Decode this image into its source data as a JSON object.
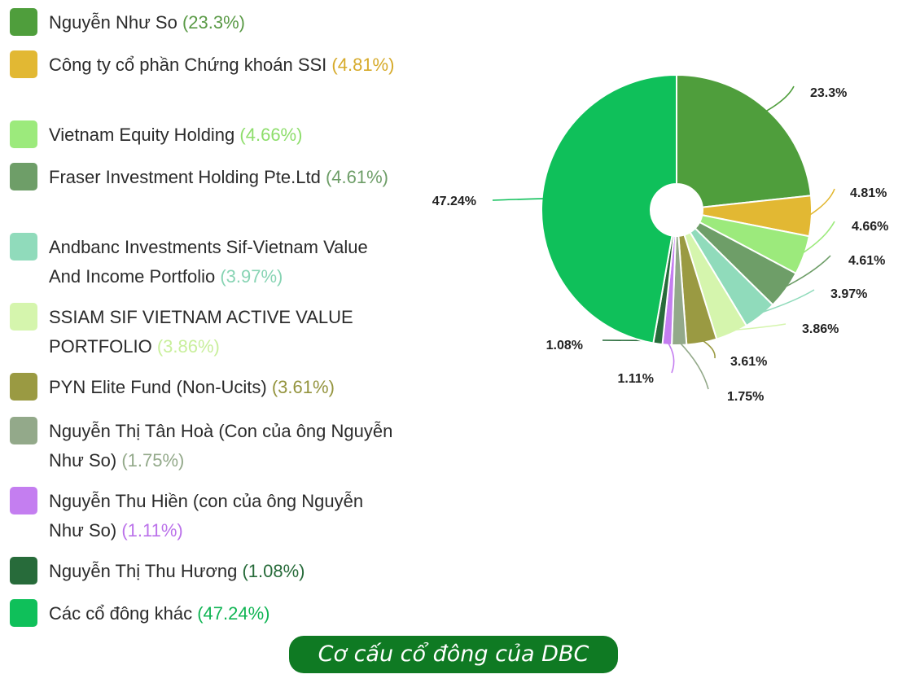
{
  "chart_data": {
    "type": "pie",
    "variant": "donut",
    "title": "Cơ cấu cổ đông của DBC",
    "legend_position": "left",
    "slices": [
      {
        "label": "Nguyễn Như So",
        "value": 23.3,
        "value_label": "23.3%",
        "legend_pct": "(23.3%)",
        "color": "#4f9e3c",
        "text_color": "#5a9a46"
      },
      {
        "label": "Công ty cổ phần Chứng khoán SSI",
        "value": 4.81,
        "value_label": "4.81%",
        "legend_pct": "(4.81%)",
        "color": "#e2b833",
        "text_color": "#d6aa2a"
      },
      {
        "label": "Vietnam Equity Holding",
        "value": 4.66,
        "value_label": "4.66%",
        "legend_pct": "(4.66%)",
        "color": "#9cea7c",
        "text_color": "#8ede6c"
      },
      {
        "label": "Fraser Investment Holding Pte.Ltd",
        "value": 4.61,
        "value_label": "4.61%",
        "legend_pct": "(4.61%)",
        "color": "#6e9e68",
        "text_color": "#6e9e68"
      },
      {
        "label": "Andbanc Investments Sif-Vietnam Value And Income Portfolio",
        "value": 3.97,
        "value_label": "3.97%",
        "legend_pct": "(3.97%)",
        "color": "#90dbbb",
        "text_color": "#88d4b4"
      },
      {
        "label": "SSIAM SIF VIETNAM ACTIVE VALUE PORTFOLIO",
        "value": 3.86,
        "value_label": "3.86%",
        "legend_pct": "(3.86%)",
        "color": "#d5f5ad",
        "text_color": "#c9ef9c"
      },
      {
        "label": "PYN Elite Fund (Non-Ucits)",
        "value": 3.61,
        "value_label": "3.61%",
        "legend_pct": "(3.61%)",
        "color": "#9a9a42",
        "text_color": "#94943e"
      },
      {
        "label": "Nguyễn Thị Tân Hoà (Con của ông Nguyễn Như So)",
        "value": 1.75,
        "value_label": "1.75%",
        "legend_pct": "(1.75%)",
        "color": "#93a98a",
        "text_color": "#93a98a"
      },
      {
        "label": "Nguyễn Thu Hiền (con của ông Nguyễn Như So)",
        "value": 1.11,
        "value_label": "1.11%",
        "legend_pct": "(1.11%)",
        "color": "#c47ef0",
        "text_color": "#bb72ea"
      },
      {
        "label": "Nguyễn Thị Thu Hương",
        "value": 1.08,
        "value_label": "1.08%",
        "legend_pct": "(1.08%)",
        "color": "#276b3a",
        "text_color": "#276b3a"
      },
      {
        "label": "Các cổ đông khác",
        "value": 47.24,
        "value_label": "47.24%",
        "legend_pct": "(47.24%)",
        "color": "#0fc05a",
        "text_color": "#12b555"
      }
    ]
  }
}
